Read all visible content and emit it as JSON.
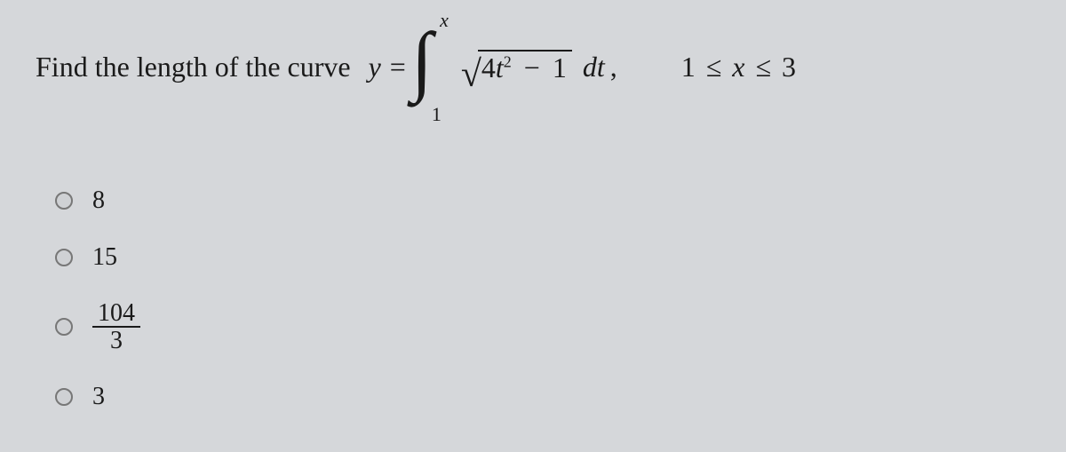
{
  "background_color": "#d5d7da",
  "text_color": "#1a1a1a",
  "prompt": "Find the length of the curve",
  "equation": {
    "lhs_var": "y",
    "equals": "=",
    "integral": {
      "upper": "x",
      "lower": "1",
      "sqrt_inner_coeff": "4",
      "sqrt_inner_var": "t",
      "sqrt_inner_exp": "2",
      "sqrt_minus": "−",
      "sqrt_const": "1",
      "differential": "dt",
      "comma": ","
    }
  },
  "range": {
    "low": "1",
    "le1": "≤",
    "var": "x",
    "le2": "≤",
    "high": "3"
  },
  "options": [
    {
      "type": "plain",
      "value": "8"
    },
    {
      "type": "plain",
      "value": "15"
    },
    {
      "type": "fraction",
      "num": "104",
      "den": "3"
    },
    {
      "type": "plain",
      "value": "3"
    }
  ]
}
